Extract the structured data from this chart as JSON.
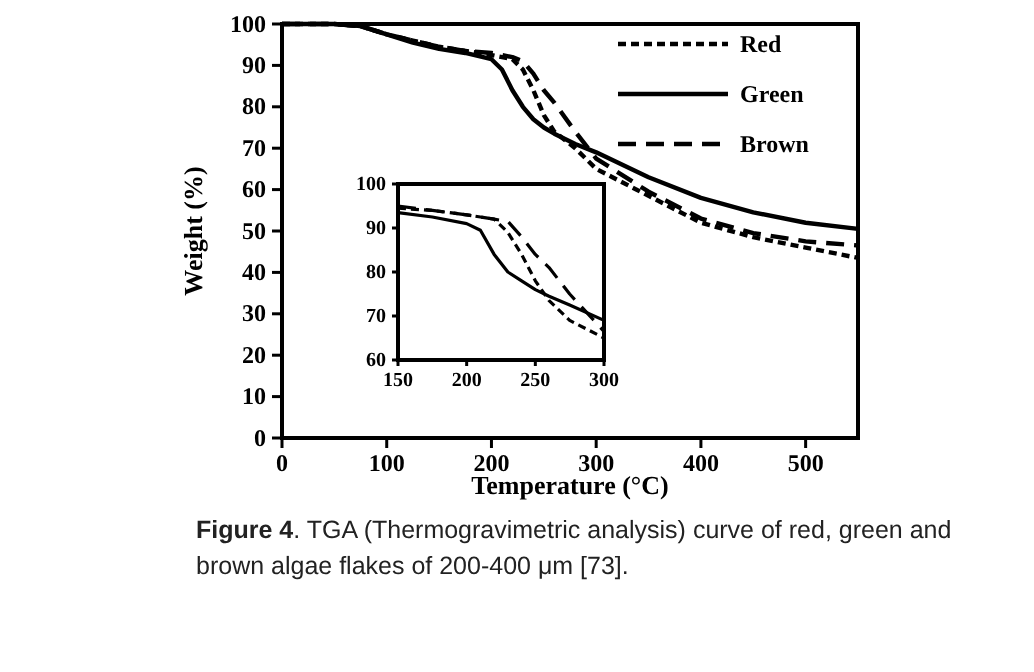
{
  "chart_data": [
    {
      "type": "line",
      "xlabel": "Temperature (°C)",
      "ylabel": "Weight (%)",
      "xlim": [
        0,
        550
      ],
      "ylim": [
        0,
        100
      ],
      "xticks": [
        0,
        100,
        200,
        300,
        400,
        500
      ],
      "yticks": [
        0,
        10,
        20,
        30,
        40,
        50,
        60,
        70,
        80,
        90,
        100
      ],
      "legend": "top right",
      "grid": false,
      "annotations": [
        "Figure 4. TGA (Thermogravimetric analysis) curve of red, green and brown algae flakes of 200-400 μm [73]."
      ],
      "x": [
        0,
        25,
        50,
        75,
        100,
        125,
        150,
        175,
        200,
        210,
        220,
        230,
        240,
        250,
        260,
        280,
        300,
        350,
        400,
        450,
        500,
        550
      ],
      "series": [
        {
          "name": "Red",
          "color": "#000000",
          "line_style": "dotted",
          "values": [
            100,
            100,
            100,
            99.5,
            97.5,
            96,
            94.5,
            93.5,
            92.5,
            92,
            91.5,
            89,
            84,
            78,
            74,
            70,
            65,
            58.5,
            52,
            48.5,
            46,
            43.5
          ]
        },
        {
          "name": "Green",
          "color": "#000000",
          "line_style": "solid",
          "values": [
            100,
            100,
            100,
            99.5,
            97.5,
            95.5,
            94,
            93,
            91.5,
            89,
            84,
            80,
            77,
            75,
            73.5,
            71,
            69,
            63,
            58,
            54.5,
            52,
            50.5
          ]
        },
        {
          "name": "Brown",
          "color": "#000000",
          "line_style": "dashed",
          "values": [
            100,
            100,
            100,
            99.5,
            97.5,
            96,
            94.5,
            93.5,
            93,
            92.5,
            92,
            91,
            88,
            84,
            81,
            74,
            67.5,
            59.5,
            53,
            49.5,
            47.5,
            46.5
          ]
        }
      ]
    },
    {
      "type": "line",
      "xlim": [
        150,
        300
      ],
      "ylim": [
        60,
        100
      ],
      "xticks": [
        150,
        200,
        250,
        300
      ],
      "yticks": [
        60,
        70,
        80,
        90,
        100
      ],
      "legend": false,
      "grid": false,
      "x": [
        150,
        175,
        200,
        210,
        220,
        230,
        240,
        250,
        260,
        275,
        300
      ],
      "series": [
        {
          "color": "#000000",
          "line_style": "dotted",
          "values": [
            94.5,
            94,
            93,
            92.5,
            92,
            89,
            84,
            78,
            73.5,
            69,
            65
          ]
        },
        {
          "color": "#000000",
          "line_style": "solid",
          "values": [
            93.5,
            92.5,
            91,
            89.5,
            84,
            80,
            78,
            76,
            74.5,
            72.5,
            69
          ]
        },
        {
          "color": "#000000",
          "line_style": "dashed",
          "values": [
            95,
            94,
            93,
            92.5,
            92,
            91.5,
            88,
            84,
            81,
            75,
            66.5
          ]
        }
      ]
    }
  ]
}
